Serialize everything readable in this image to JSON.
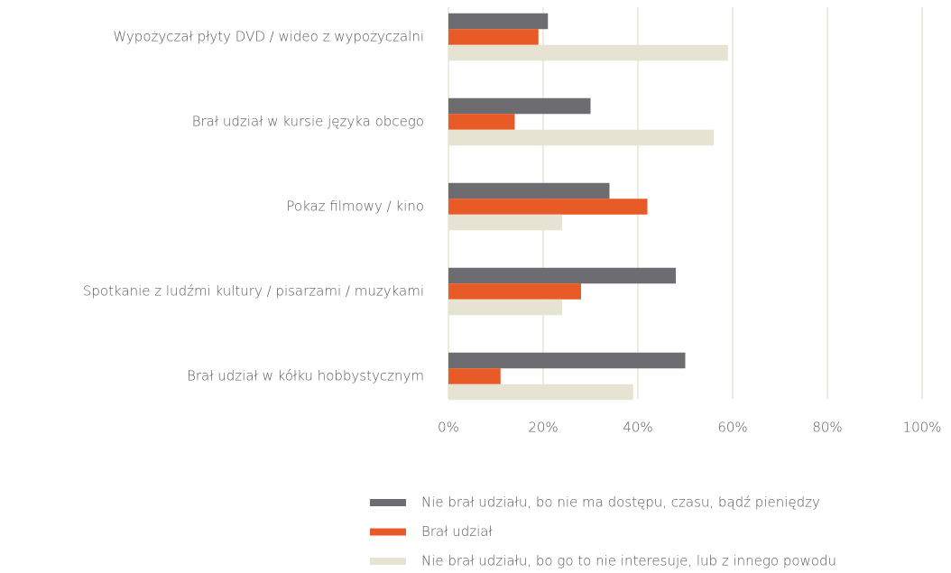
{
  "chart_data": {
    "type": "bar",
    "orientation": "horizontal",
    "categories": [
      "Wypożyczał płyty DVD / wideo z wypożyczalni",
      "Brał udział w kursie języka obcego",
      "Pokaz filmowy / kino",
      "Spotkanie z ludźmi kultury / pisarzami / muzykami",
      "Brał udział w kółku hobbystycznym"
    ],
    "series": [
      {
        "name": "Nie brał udziału, bo nie ma dostępu, czasu, bądź pieniędzy",
        "color": "#6d6d71",
        "values": [
          21,
          30,
          34,
          48,
          50
        ]
      },
      {
        "name": "Brał udział",
        "color": "#e85a26",
        "values": [
          19,
          14,
          42,
          28,
          11
        ]
      },
      {
        "name": "Nie brał udziału, bo go to nie interesuje, lub z innego powodu",
        "color": "#e6e3d3",
        "values": [
          59,
          56,
          24,
          24,
          39
        ]
      }
    ],
    "xlim": [
      0,
      100
    ],
    "xticks": [
      {
        "value": 0,
        "label": "0%"
      },
      {
        "value": 20,
        "label": "20%"
      },
      {
        "value": 40,
        "label": "40%"
      },
      {
        "value": 60,
        "label": "60%"
      },
      {
        "value": 80,
        "label": "80%"
      },
      {
        "value": 100,
        "label": "100%"
      }
    ],
    "grid": true,
    "legend": "bottom"
  }
}
